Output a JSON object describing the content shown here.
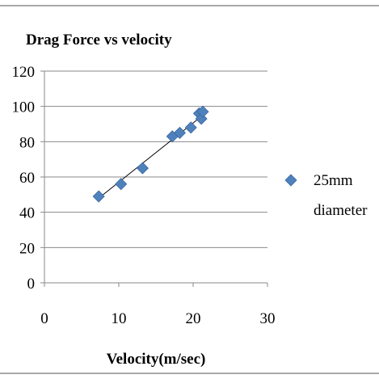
{
  "chart_data": {
    "type": "scatter",
    "title": "Drag Force vs velocity",
    "xlabel": "Velocity(m/sec)",
    "ylabel": "",
    "xlim": [
      0,
      30
    ],
    "ylim": [
      0,
      120
    ],
    "x_ticks": [
      "0",
      "10",
      "20",
      "30"
    ],
    "y_ticks": [
      "0",
      "20",
      "40",
      "60",
      "80",
      "100",
      "120"
    ],
    "grid": "horizontal",
    "legend_position": "right",
    "marker": "diamond",
    "series": [
      {
        "name": "25mm diameter",
        "color": "#4F81BD",
        "points": [
          {
            "x": 7.3,
            "y": 49
          },
          {
            "x": 10.3,
            "y": 56
          },
          {
            "x": 13.2,
            "y": 65
          },
          {
            "x": 17.2,
            "y": 83
          },
          {
            "x": 18.2,
            "y": 85
          },
          {
            "x": 19.7,
            "y": 88
          },
          {
            "x": 20.8,
            "y": 96
          },
          {
            "x": 21.1,
            "y": 93
          },
          {
            "x": 21.3,
            "y": 97
          }
        ],
        "trendline": {
          "x": [
            7.3,
            21.3
          ],
          "y": [
            48,
            95
          ]
        }
      }
    ]
  }
}
